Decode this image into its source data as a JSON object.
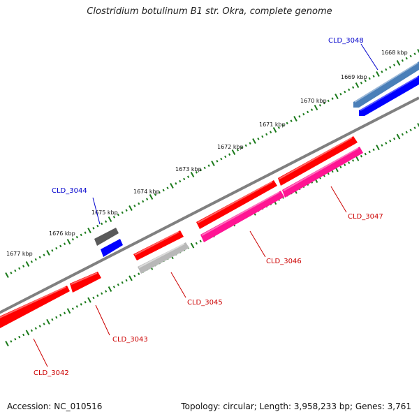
{
  "title": "Clostridium botulinum B1 str. Okra, complete genome",
  "footer": {
    "accession": "Accession: NC_010516",
    "summary": "Topology: circular; Length: 3,958,233 bp; Genes: 3,761"
  },
  "colors": {
    "backbone": "#808080",
    "tick": "#1a7a1a",
    "red_gene": "#ff0000",
    "pink_gene": "#ff1493",
    "gray_gene": "#b8b8b8",
    "darkgray_gene": "#5a5a5a",
    "blue_gene": "#0000ff",
    "steelblue_gene": "#4a7fb8",
    "label_red": "#cc0000",
    "label_blue": "#0000cc"
  },
  "scale_labels": [
    "1668 kbp",
    "1669 kbp",
    "1670 kbp",
    "1671 kbp",
    "1672 kbp",
    "1673 kbp",
    "1674 kbp",
    "1675 kbp",
    "1676 kbp",
    "1677 kbp"
  ],
  "gene_labels": {
    "cld_3042": "CLD_3042",
    "cld_3043": "CLD_3043",
    "cld_3044": "CLD_3044",
    "cld_3045": "CLD_3045",
    "cld_3046": "CLD_3046",
    "cld_3047": "CLD_3047",
    "cld_3048": "CLD_3048"
  }
}
